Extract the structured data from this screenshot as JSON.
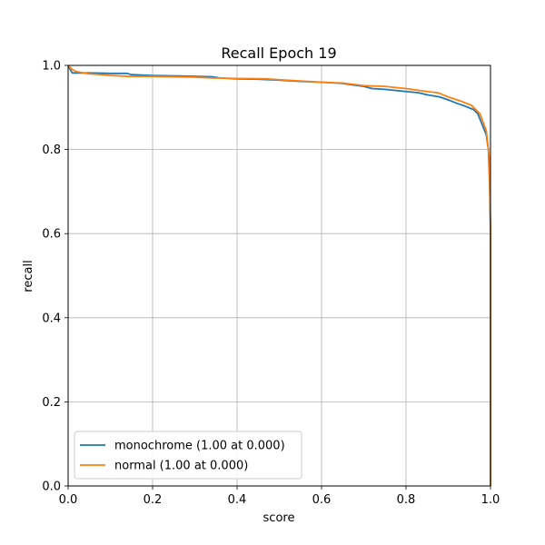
{
  "chart_data": {
    "type": "line",
    "title": "Recall Epoch 19",
    "xlabel": "score",
    "ylabel": "recall",
    "xlim": [
      0,
      1
    ],
    "ylim": [
      0,
      1
    ],
    "xticks": [
      "0.0",
      "0.2",
      "0.4",
      "0.6",
      "0.8",
      "1.0"
    ],
    "yticks": [
      "0.0",
      "0.2",
      "0.4",
      "0.6",
      "0.8",
      "1.0"
    ],
    "grid": true,
    "legend_position": "lower-left",
    "series": [
      {
        "name": "monochrome (1.00 at 0.000)",
        "color": "#1f77b4",
        "x": [
          0.0,
          0.005,
          0.01,
          0.05,
          0.1,
          0.14,
          0.15,
          0.2,
          0.25,
          0.3,
          0.34,
          0.36,
          0.4,
          0.45,
          0.5,
          0.55,
          0.6,
          0.65,
          0.7,
          0.72,
          0.75,
          0.8,
          0.83,
          0.85,
          0.88,
          0.9,
          0.92,
          0.94,
          0.96,
          0.97,
          0.98,
          0.99,
          0.995,
          0.998,
          1.0,
          1.0
        ],
        "y": [
          1.0,
          0.99,
          0.982,
          0.982,
          0.981,
          0.981,
          0.978,
          0.976,
          0.975,
          0.974,
          0.973,
          0.97,
          0.968,
          0.967,
          0.965,
          0.962,
          0.96,
          0.957,
          0.95,
          0.945,
          0.943,
          0.938,
          0.935,
          0.93,
          0.925,
          0.918,
          0.91,
          0.903,
          0.895,
          0.885,
          0.86,
          0.835,
          0.8,
          0.72,
          0.6,
          0.0
        ]
      },
      {
        "name": "normal (1.00 at 0.000)",
        "color": "#ff7f0e",
        "x": [
          0.0,
          0.01,
          0.02,
          0.05,
          0.08,
          0.1,
          0.14,
          0.2,
          0.3,
          0.34,
          0.4,
          0.47,
          0.5,
          0.6,
          0.65,
          0.7,
          0.75,
          0.8,
          0.85,
          0.875,
          0.9,
          0.93,
          0.955,
          0.975,
          0.99,
          0.997,
          1.0,
          1.0
        ],
        "y": [
          1.0,
          0.99,
          0.985,
          0.98,
          0.978,
          0.976,
          0.974,
          0.974,
          0.972,
          0.97,
          0.969,
          0.968,
          0.966,
          0.96,
          0.958,
          0.952,
          0.95,
          0.945,
          0.938,
          0.935,
          0.925,
          0.915,
          0.905,
          0.885,
          0.845,
          0.78,
          0.62,
          0.0
        ]
      }
    ]
  }
}
